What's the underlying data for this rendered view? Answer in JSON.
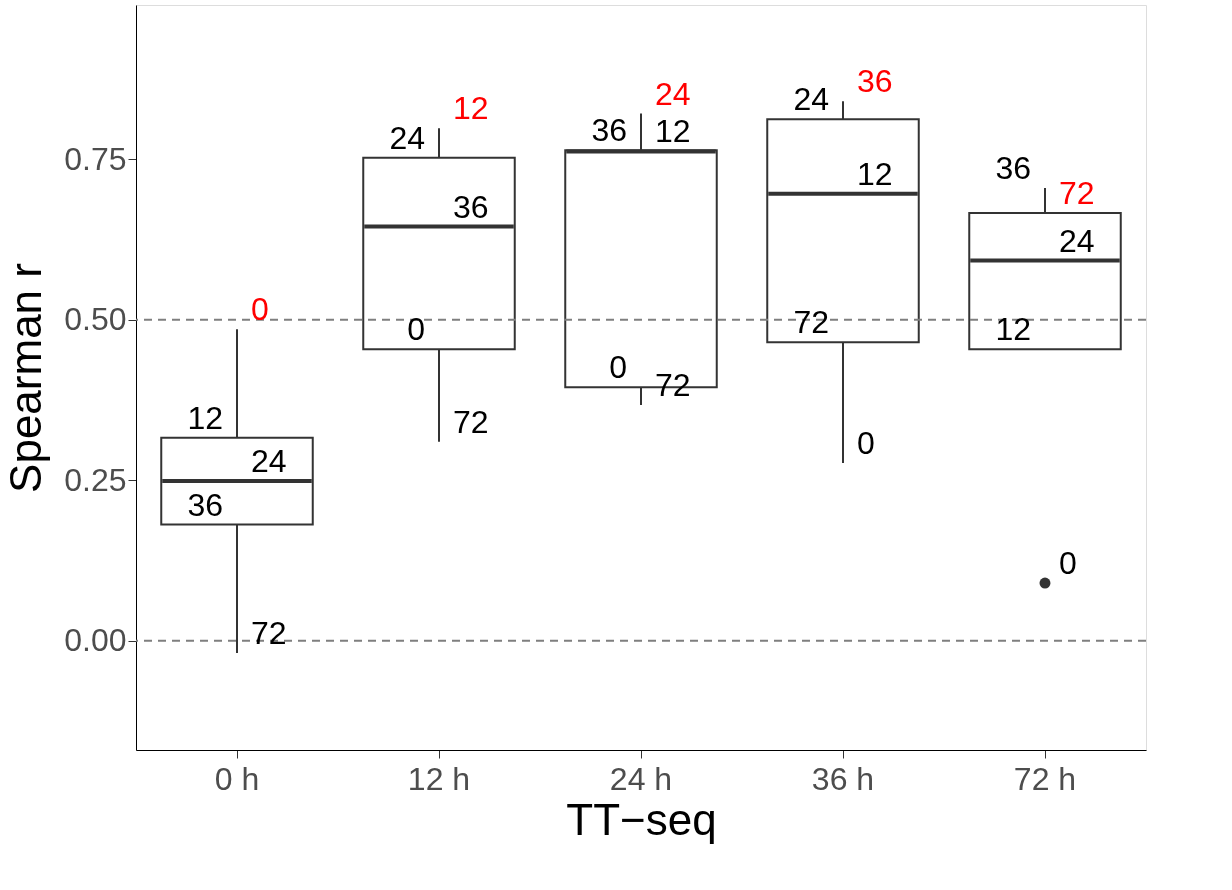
{
  "chart_data": {
    "type": "box",
    "xlabel": "TT−seq",
    "ylabel": "Spearman r",
    "categories": [
      "0 h",
      "12 h",
      "24 h",
      "36 h",
      "72 h"
    ],
    "boxes": [
      {
        "low": -0.019,
        "q1": 0.181,
        "median": 0.249,
        "q3": 0.316,
        "high": 0.485
      },
      {
        "low": 0.31,
        "q1": 0.454,
        "median": 0.645,
        "q3": 0.752,
        "high": 0.798
      },
      {
        "low": 0.367,
        "q1": 0.395,
        "median": 0.762,
        "q3": 0.764,
        "high": 0.821
      },
      {
        "low": 0.277,
        "q1": 0.465,
        "median": 0.696,
        "q3": 0.812,
        "high": 0.84
      },
      {
        "low": 0.454,
        "q1": 0.454,
        "median": 0.592,
        "q3": 0.666,
        "high": 0.705
      }
    ],
    "series": [
      {
        "type": "scatter",
        "x": [
          "72 h"
        ],
        "values": [
          0.09
        ],
        "color": "#333333"
      }
    ],
    "ylim": [
      -0.17,
      0.99
    ],
    "yticks": [
      {
        "value": 0,
        "label": "0.00"
      },
      {
        "value": 0.25,
        "label": "0.25"
      },
      {
        "value": 0.5,
        "label": "0.50"
      },
      {
        "value": 0.75,
        "label": "0.75"
      }
    ],
    "ref_lines": [
      {
        "axis": "y",
        "value": 0,
        "color": "#7f7f7f",
        "line_style": "dashed"
      },
      {
        "axis": "y",
        "value": 0.5,
        "color": "#7f7f7f",
        "line_style": "dashed"
      }
    ],
    "annotations": [
      {
        "text": "0",
        "x": "0 h",
        "y": 0.485
      },
      {
        "text": "12",
        "x": "0 h",
        "y": 0.316
      },
      {
        "text": "24",
        "x": "0 h",
        "y": 0.249
      },
      {
        "text": "36",
        "x": "0 h",
        "y": 0.181
      },
      {
        "text": "72",
        "x": "0 h",
        "y": -0.019
      },
      {
        "text": "12",
        "x": "12 h",
        "y": 0.798
      },
      {
        "text": "24",
        "x": "12 h",
        "y": 0.752
      },
      {
        "text": "36",
        "x": "12 h",
        "y": 0.645
      },
      {
        "text": "0",
        "x": "12 h",
        "y": 0.454
      },
      {
        "text": "72",
        "x": "12 h",
        "y": 0.31
      },
      {
        "text": "24",
        "x": "24 h",
        "y": 0.821
      },
      {
        "text": "36",
        "x": "24 h",
        "y": 0.764
      },
      {
        "text": "12",
        "x": "24 h",
        "y": 0.762
      },
      {
        "text": "0",
        "x": "24 h",
        "y": 0.395
      },
      {
        "text": "72",
        "x": "24 h",
        "y": 0.367
      },
      {
        "text": "36",
        "x": "36 h",
        "y": 0.84
      },
      {
        "text": "24",
        "x": "36 h",
        "y": 0.812
      },
      {
        "text": "12",
        "x": "36 h",
        "y": 0.696
      },
      {
        "text": "72",
        "x": "36 h",
        "y": 0.465
      },
      {
        "text": "0",
        "x": "36 h",
        "y": 0.277
      },
      {
        "text": "72",
        "x": "72 h",
        "y": 0.666
      },
      {
        "text": "36",
        "x": "72 h",
        "y": 0.705
      },
      {
        "text": "24",
        "x": "72 h",
        "y": 0.592
      },
      {
        "text": "12",
        "x": "72 h",
        "y": 0.454
      },
      {
        "text": "0",
        "x": "72 h",
        "y": 0.09
      }
    ]
  }
}
